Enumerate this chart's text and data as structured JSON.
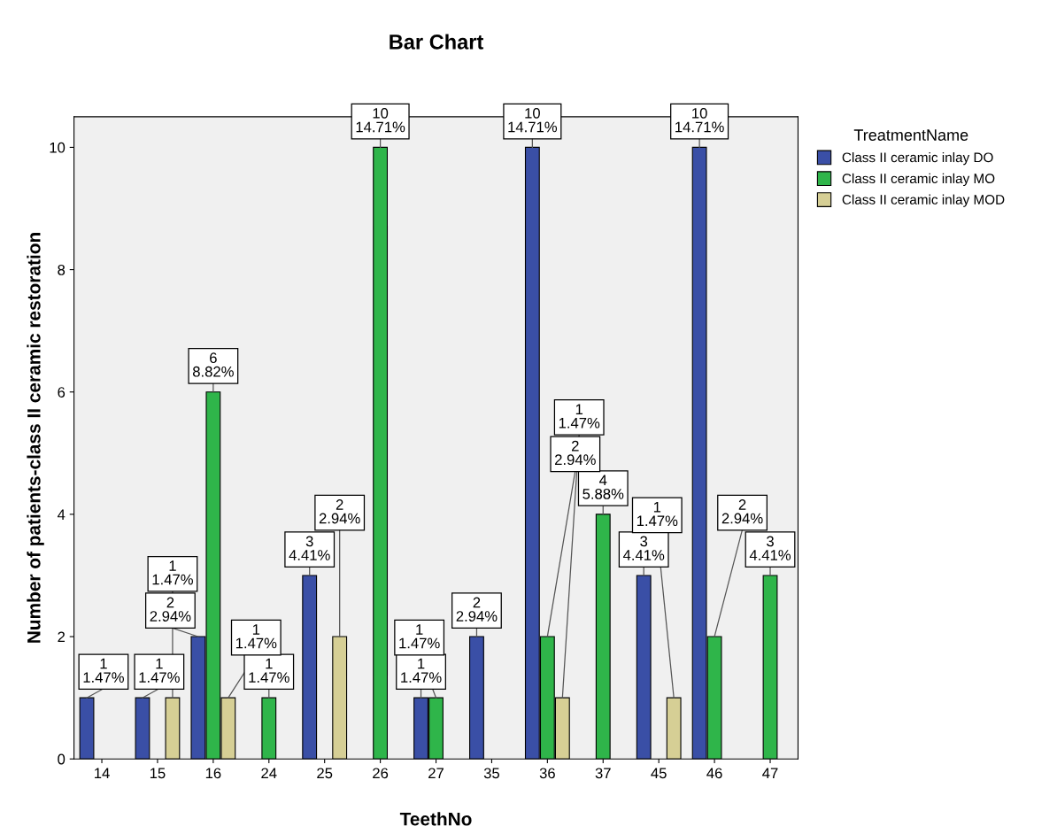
{
  "chart_data": {
    "type": "bar",
    "title": "Bar Chart",
    "xlabel": "TeethNo",
    "ylabel": "Number of patients-class II ceramic restoration",
    "legend_title": "TreatmentName",
    "categories": [
      "14",
      "15",
      "16",
      "24",
      "25",
      "26",
      "27",
      "35",
      "36",
      "37",
      "45",
      "46",
      "47"
    ],
    "series": [
      {
        "name": "Class II ceramic inlay DO",
        "color": "#3a4fa6",
        "values": [
          1,
          1,
          2,
          null,
          3,
          null,
          1,
          2,
          10,
          null,
          3,
          10,
          null
        ],
        "value_labels": [
          "1\n1.47%",
          "1\n1.47%",
          "2\n2.94%",
          null,
          "3\n4.41%",
          null,
          "1\n1.47%",
          "2\n2.94%",
          "10\n14.71%",
          null,
          "3\n4.41%",
          "10\n14.71%",
          null
        ]
      },
      {
        "name": "Class II ceramic inlay MO",
        "color": "#2fb54a",
        "values": [
          null,
          null,
          6,
          1,
          null,
          10,
          1,
          null,
          2,
          4,
          null,
          2,
          3
        ],
        "value_labels": [
          null,
          null,
          "6\n8.82%",
          "1\n1.47%",
          null,
          "10\n14.71%",
          "1\n1.47%",
          null,
          "2\n2.94%",
          "4\n5.88%",
          null,
          "2\n2.94%",
          "3\n4.41%"
        ]
      },
      {
        "name": "Class II ceramic inlay MOD",
        "color": "#d6cf95",
        "values": [
          null,
          1,
          1,
          null,
          2,
          null,
          null,
          null,
          1,
          null,
          1,
          null,
          null
        ],
        "value_labels": [
          null,
          "1\n1.47%",
          "1\n1.47%",
          null,
          "2\n2.94%",
          null,
          null,
          null,
          "1\n1.47%",
          null,
          "1\n1.47%",
          null,
          null
        ]
      }
    ],
    "ylim": [
      0,
      10.5
    ],
    "yticks": [
      0,
      2,
      4,
      6,
      8,
      10
    ],
    "grid": false,
    "legend": "right"
  }
}
